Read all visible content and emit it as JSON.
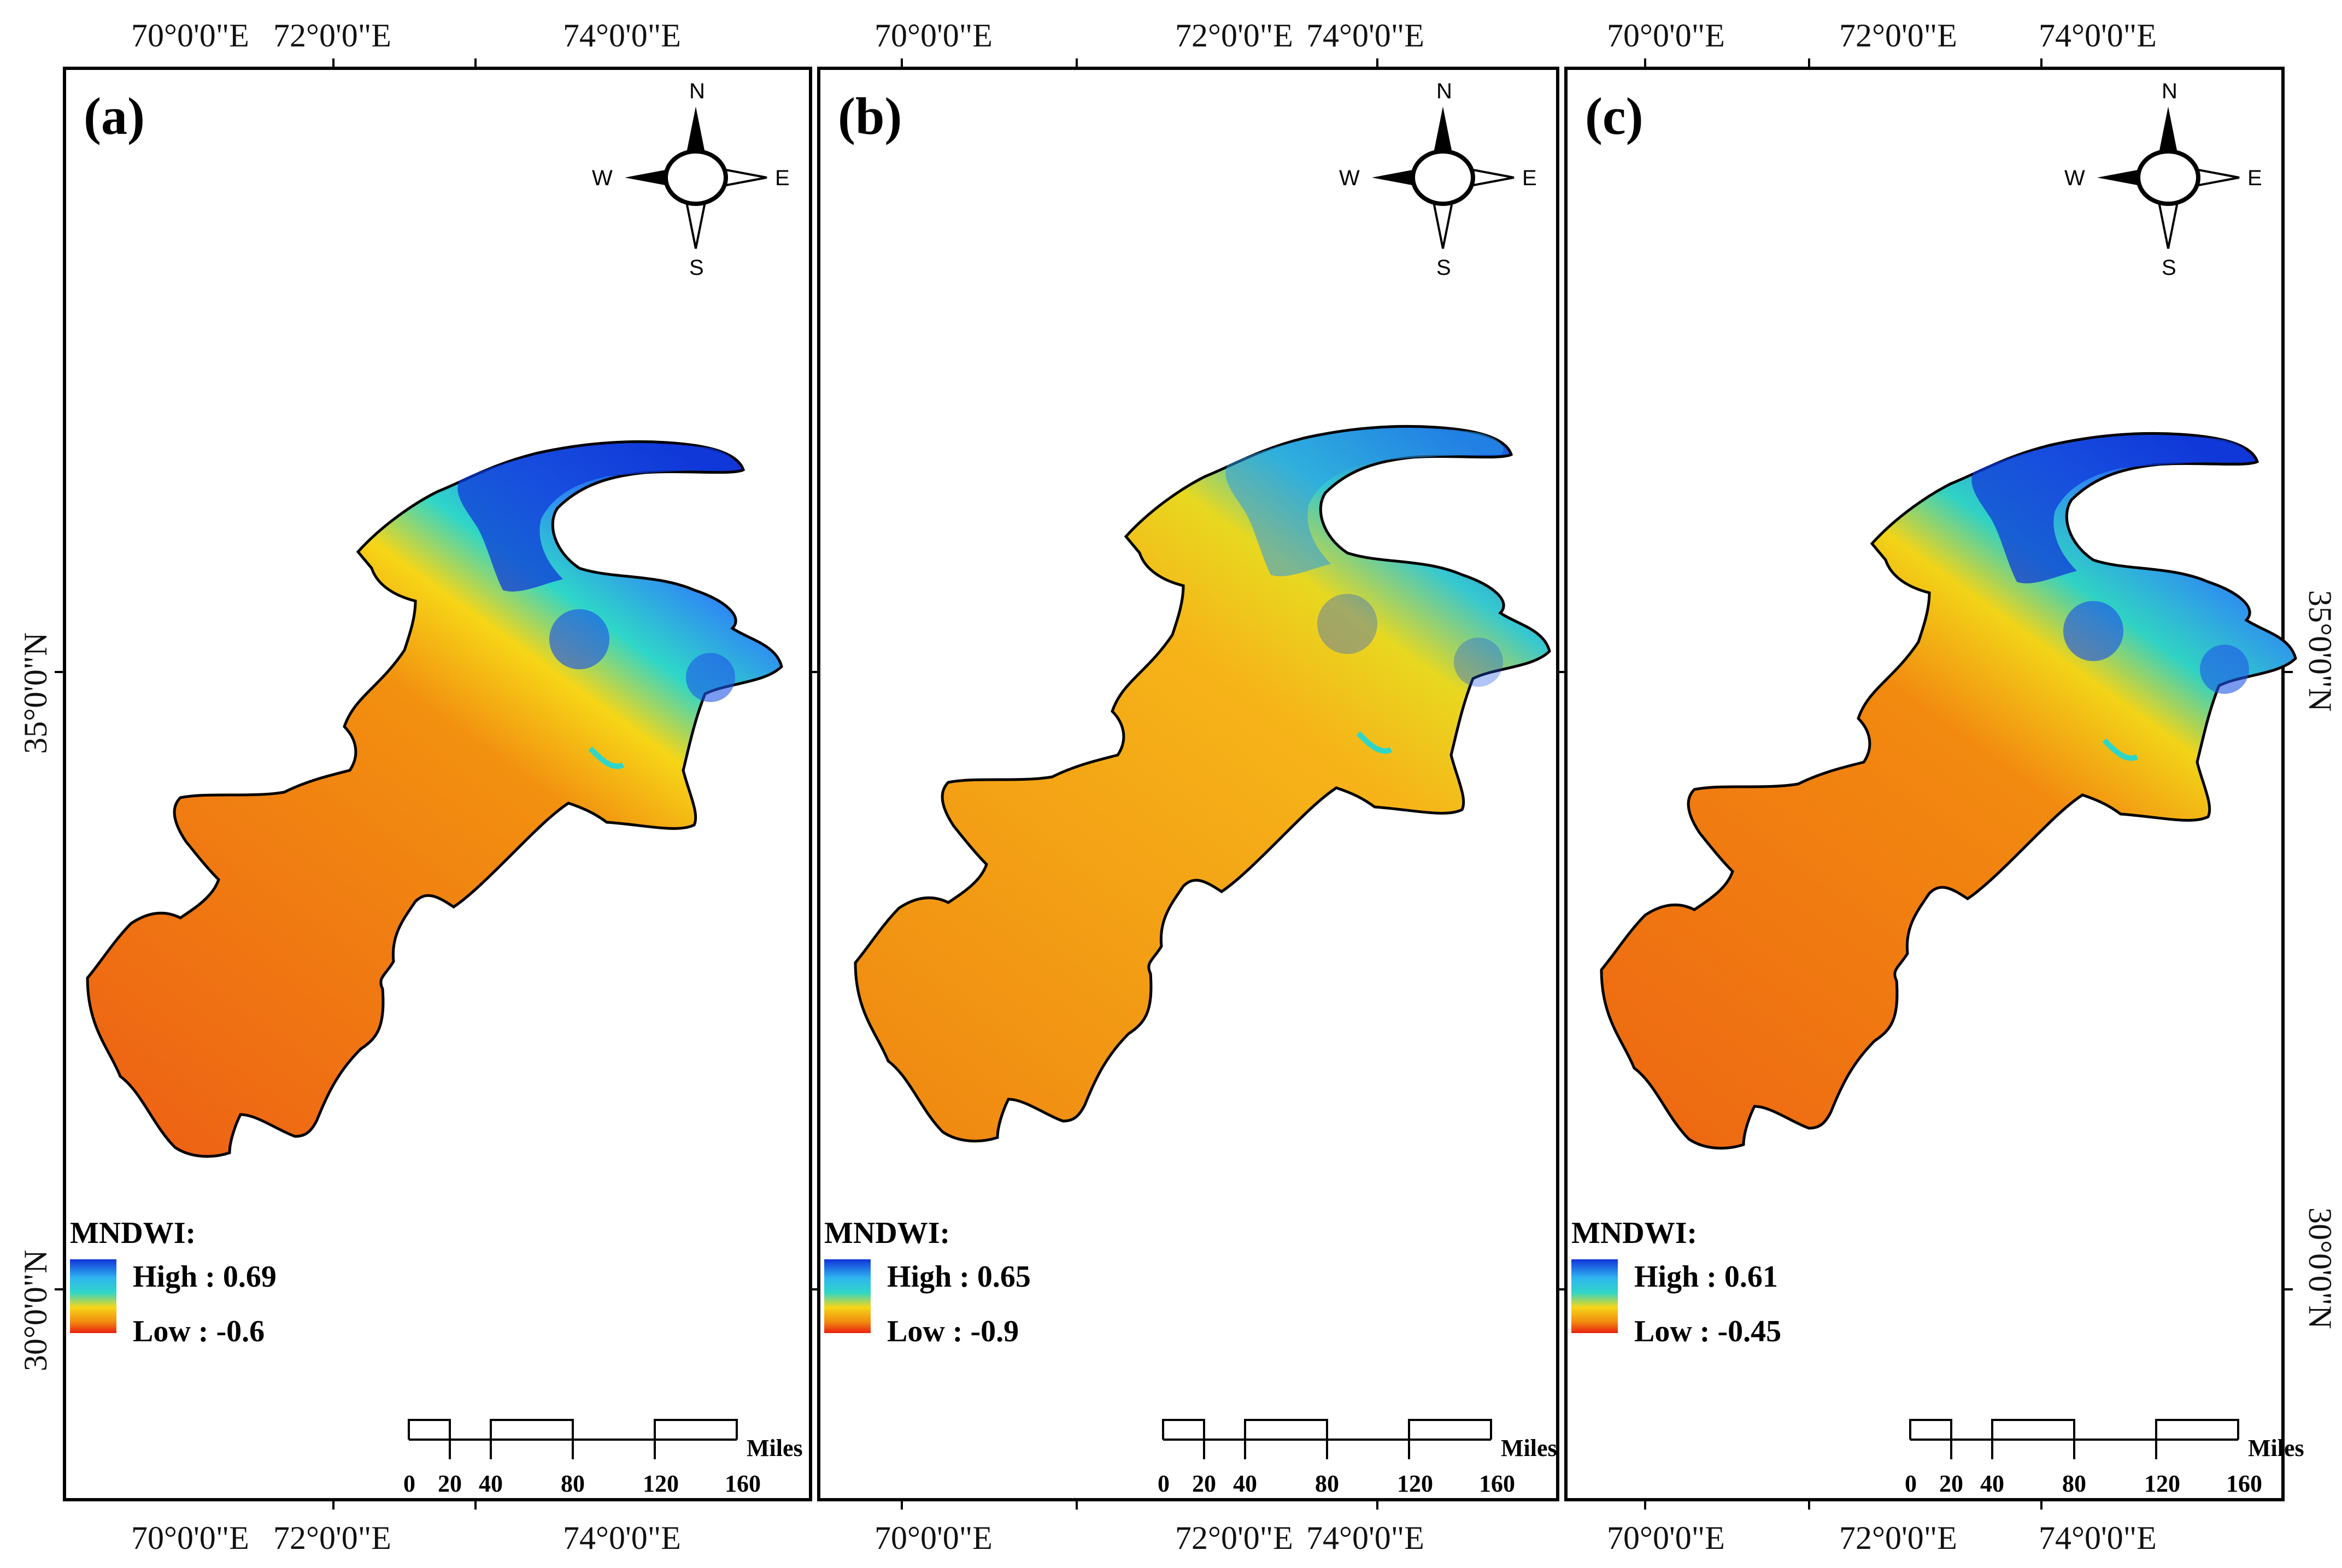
{
  "figure": {
    "top_lon_labels": [
      "70°0'0\"E",
      "72°0'0\"E",
      "74°0'0\"E"
    ],
    "bottom_lon_labels": [
      "70°0'0\"E",
      "72°0'0\"E",
      "74°0'0\"E"
    ],
    "left_lat_labels": [
      "35°0'0\"N",
      "30°0'0\"N"
    ],
    "right_lat_labels": [
      "35°0'0\"N",
      "30°0'0\"N"
    ],
    "colors": {
      "water_high": "#1034d8",
      "mid_cyan": "#2fd6c8",
      "mid_yellow": "#f6d617",
      "orange": "#f28a10",
      "low_red": "#e82010",
      "frame": "#000000"
    }
  },
  "panels": [
    {
      "label": "(a)",
      "legend_title": "MNDWI:",
      "legend_high": "High : 0.69",
      "legend_low": "Low : -0.6",
      "high_value": 0.69,
      "low_value": -0.6,
      "compass": {
        "n": "N",
        "s": "S",
        "e": "E",
        "w": "W",
        "icon": "north-arrow-icon"
      },
      "scale": {
        "ticks": [
          "0",
          "20",
          "40",
          "80",
          "120",
          "160"
        ],
        "unit": "Miles"
      }
    },
    {
      "label": "(b)",
      "legend_title": "MNDWI:",
      "legend_high": "High : 0.65",
      "legend_low": "Low : -0.9",
      "high_value": 0.65,
      "low_value": -0.9,
      "compass": {
        "n": "N",
        "s": "S",
        "e": "E",
        "w": "W",
        "icon": "north-arrow-icon"
      },
      "scale": {
        "ticks": [
          "0",
          "20",
          "40",
          "80",
          "120",
          "160"
        ],
        "unit": "Miles"
      }
    },
    {
      "label": "(c)",
      "legend_title": "MNDWI:",
      "legend_high": "High : 0.61",
      "legend_low": "Low : -0.45",
      "high_value": 0.61,
      "low_value": -0.45,
      "compass": {
        "n": "N",
        "s": "S",
        "e": "E",
        "w": "W",
        "icon": "north-arrow-icon"
      },
      "scale": {
        "ticks": [
          "0",
          "20",
          "40",
          "80",
          "120",
          "160"
        ],
        "unit": "Miles"
      }
    }
  ]
}
